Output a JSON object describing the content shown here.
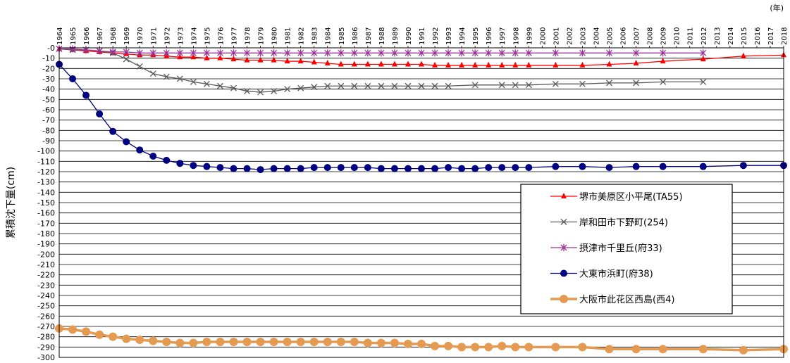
{
  "chart_data": {
    "type": "line",
    "ylabel": "累積沈下量(cm)",
    "x_unit": "(年)",
    "ylim": [
      -300,
      0
    ],
    "ytick_step": 10,
    "ytick_labels": [
      "-0",
      "-10",
      "-20",
      "-30",
      "-40",
      "-50",
      "-60",
      "-70",
      "-80",
      "-90",
      "-100",
      "-110",
      "-120",
      "-130",
      "-140",
      "-150",
      "-160",
      "-170",
      "-180",
      "-190",
      "-200",
      "-210",
      "-220",
      "-230",
      "-240",
      "-250",
      "-260",
      "-270",
      "-280",
      "-290",
      "-300"
    ],
    "categories": [
      1964,
      1965,
      1966,
      1967,
      1968,
      1969,
      1970,
      1971,
      1972,
      1973,
      1974,
      1975,
      1976,
      1977,
      1978,
      1979,
      1980,
      1981,
      1982,
      1983,
      1984,
      1985,
      1986,
      1987,
      1988,
      1989,
      1990,
      1991,
      1992,
      1993,
      1994,
      1995,
      1996,
      1997,
      1998,
      1999,
      2000,
      2001,
      2002,
      2003,
      2004,
      2005,
      2006,
      2007,
      2008,
      2009,
      2010,
      2011,
      2012,
      2013,
      2014,
      2015,
      2016,
      2017,
      2018
    ],
    "grid": true,
    "legend_position": "right-middle",
    "series": [
      {
        "name": "堺市美原区小平尾(TA55)",
        "color": "#ff0000",
        "marker": "triangle",
        "points": [
          [
            1964,
            -1
          ],
          [
            1965,
            -2
          ],
          [
            1966,
            -3
          ],
          [
            1967,
            -4
          ],
          [
            1968,
            -5
          ],
          [
            1969,
            -6
          ],
          [
            1970,
            -7
          ],
          [
            1971,
            -7
          ],
          [
            1972,
            -8
          ],
          [
            1973,
            -9
          ],
          [
            1974,
            -9
          ],
          [
            1975,
            -10
          ],
          [
            1976,
            -10
          ],
          [
            1977,
            -11
          ],
          [
            1978,
            -12
          ],
          [
            1979,
            -12
          ],
          [
            1980,
            -12
          ],
          [
            1981,
            -13
          ],
          [
            1982,
            -13
          ],
          [
            1983,
            -14
          ],
          [
            1984,
            -15
          ],
          [
            1985,
            -16
          ],
          [
            1986,
            -16
          ],
          [
            1987,
            -16
          ],
          [
            1988,
            -16
          ],
          [
            1989,
            -16
          ],
          [
            1990,
            -16
          ],
          [
            1991,
            -16
          ],
          [
            1992,
            -17
          ],
          [
            1993,
            -17
          ],
          [
            1994,
            -17
          ],
          [
            1995,
            -17
          ],
          [
            1996,
            -17
          ],
          [
            1997,
            -17
          ],
          [
            1998,
            -17
          ],
          [
            1999,
            -17
          ],
          [
            2001,
            -17
          ],
          [
            2003,
            -17
          ],
          [
            2005,
            -16
          ],
          [
            2007,
            -15
          ],
          [
            2009,
            -13
          ],
          [
            2012,
            -11
          ],
          [
            2015,
            -8
          ],
          [
            2018,
            -7
          ]
        ]
      },
      {
        "name": "岸和田市下野町(254)",
        "color": "#595959",
        "marker": "x",
        "points": [
          [
            1964,
            -1
          ],
          [
            1965,
            -2
          ],
          [
            1966,
            -2
          ],
          [
            1967,
            -3
          ],
          [
            1968,
            -5
          ],
          [
            1969,
            -11
          ],
          [
            1970,
            -18
          ],
          [
            1971,
            -25
          ],
          [
            1972,
            -28
          ],
          [
            1973,
            -30
          ],
          [
            1974,
            -33
          ],
          [
            1975,
            -35
          ],
          [
            1976,
            -37
          ],
          [
            1977,
            -39
          ],
          [
            1978,
            -42
          ],
          [
            1979,
            -43
          ],
          [
            1980,
            -42
          ],
          [
            1981,
            -40
          ],
          [
            1982,
            -39
          ],
          [
            1983,
            -38
          ],
          [
            1984,
            -37
          ],
          [
            1985,
            -37
          ],
          [
            1986,
            -37
          ],
          [
            1987,
            -37
          ],
          [
            1988,
            -37
          ],
          [
            1989,
            -37
          ],
          [
            1990,
            -37
          ],
          [
            1991,
            -37
          ],
          [
            1992,
            -37
          ],
          [
            1993,
            -37
          ],
          [
            1995,
            -36
          ],
          [
            1997,
            -36
          ],
          [
            1998,
            -36
          ],
          [
            1999,
            -36
          ],
          [
            2001,
            -35
          ],
          [
            2003,
            -35
          ],
          [
            2005,
            -34
          ],
          [
            2007,
            -34
          ],
          [
            2009,
            -33
          ],
          [
            2012,
            -33
          ]
        ]
      },
      {
        "name": "摂津市千里丘(府33)",
        "color": "#993399",
        "marker": "asterisk",
        "points": [
          [
            1964,
            -1
          ],
          [
            1965,
            -1
          ],
          [
            1966,
            -2
          ],
          [
            1967,
            -3
          ],
          [
            1968,
            -4
          ],
          [
            1969,
            -4
          ],
          [
            1970,
            -5
          ],
          [
            1971,
            -5
          ],
          [
            1972,
            -5
          ],
          [
            1973,
            -5
          ],
          [
            1974,
            -5
          ],
          [
            1975,
            -5
          ],
          [
            1976,
            -5
          ],
          [
            1977,
            -5
          ],
          [
            1978,
            -5
          ],
          [
            1979,
            -5
          ],
          [
            1980,
            -5
          ],
          [
            1981,
            -5
          ],
          [
            1982,
            -5
          ],
          [
            1983,
            -5
          ],
          [
            1984,
            -5
          ],
          [
            1985,
            -5
          ],
          [
            1986,
            -5
          ],
          [
            1987,
            -5
          ],
          [
            1988,
            -5
          ],
          [
            1989,
            -5
          ],
          [
            1990,
            -5
          ],
          [
            1991,
            -5
          ],
          [
            1992,
            -5
          ],
          [
            1993,
            -5
          ],
          [
            1994,
            -5
          ],
          [
            1995,
            -5
          ],
          [
            1996,
            -5
          ],
          [
            1997,
            -5
          ],
          [
            1998,
            -5
          ],
          [
            1999,
            -5
          ],
          [
            2001,
            -5
          ],
          [
            2003,
            -5
          ],
          [
            2005,
            -5
          ],
          [
            2007,
            -5
          ],
          [
            2009,
            -5
          ],
          [
            2012,
            -5
          ]
        ]
      },
      {
        "name": "大東市浜町(府38)",
        "color": "#000080",
        "marker": "circle",
        "points": [
          [
            1964,
            -16
          ],
          [
            1965,
            -30
          ],
          [
            1966,
            -46
          ],
          [
            1967,
            -64
          ],
          [
            1968,
            -81
          ],
          [
            1969,
            -91
          ],
          [
            1970,
            -99
          ],
          [
            1971,
            -105
          ],
          [
            1972,
            -109
          ],
          [
            1973,
            -112
          ],
          [
            1974,
            -114
          ],
          [
            1975,
            -115
          ],
          [
            1976,
            -116
          ],
          [
            1977,
            -117
          ],
          [
            1978,
            -117
          ],
          [
            1979,
            -118
          ],
          [
            1980,
            -117
          ],
          [
            1981,
            -117
          ],
          [
            1982,
            -117
          ],
          [
            1983,
            -116
          ],
          [
            1984,
            -116
          ],
          [
            1985,
            -116
          ],
          [
            1986,
            -116
          ],
          [
            1987,
            -116
          ],
          [
            1988,
            -117
          ],
          [
            1989,
            -117
          ],
          [
            1990,
            -117
          ],
          [
            1991,
            -117
          ],
          [
            1992,
            -117
          ],
          [
            1993,
            -116
          ],
          [
            1994,
            -117
          ],
          [
            1995,
            -117
          ],
          [
            1996,
            -116
          ],
          [
            1997,
            -116
          ],
          [
            1998,
            -116
          ],
          [
            1999,
            -116
          ],
          [
            2001,
            -115
          ],
          [
            2003,
            -115
          ],
          [
            2005,
            -116
          ],
          [
            2007,
            -115
          ],
          [
            2009,
            -115
          ],
          [
            2012,
            -115
          ],
          [
            2015,
            -114
          ],
          [
            2018,
            -114
          ]
        ]
      },
      {
        "name": "大阪市此花区西島(西4)",
        "color": "#e59a52",
        "marker": "circle",
        "points": [
          [
            1964,
            -272
          ],
          [
            1965,
            -273
          ],
          [
            1966,
            -275
          ],
          [
            1967,
            -278
          ],
          [
            1968,
            -280
          ],
          [
            1969,
            -282
          ],
          [
            1970,
            -283
          ],
          [
            1971,
            -284
          ],
          [
            1972,
            -285
          ],
          [
            1973,
            -286
          ],
          [
            1974,
            -286
          ],
          [
            1975,
            -285
          ],
          [
            1976,
            -285
          ],
          [
            1977,
            -285
          ],
          [
            1978,
            -285
          ],
          [
            1979,
            -285
          ],
          [
            1980,
            -285
          ],
          [
            1981,
            -285
          ],
          [
            1982,
            -285
          ],
          [
            1983,
            -285
          ],
          [
            1984,
            -285
          ],
          [
            1985,
            -285
          ],
          [
            1986,
            -285
          ],
          [
            1987,
            -286
          ],
          [
            1988,
            -286
          ],
          [
            1989,
            -286
          ],
          [
            1990,
            -287
          ],
          [
            1991,
            -287
          ],
          [
            1992,
            -289
          ],
          [
            1993,
            -289
          ],
          [
            1994,
            -290
          ],
          [
            1995,
            -290
          ],
          [
            1996,
            -290
          ],
          [
            1997,
            -289
          ],
          [
            1998,
            -290
          ],
          [
            1999,
            -290
          ],
          [
            2001,
            -290
          ],
          [
            2003,
            -290
          ],
          [
            2005,
            -292
          ],
          [
            2007,
            -292
          ],
          [
            2009,
            -292
          ],
          [
            2012,
            -292
          ],
          [
            2015,
            -293
          ],
          [
            2018,
            -292
          ]
        ]
      }
    ]
  }
}
